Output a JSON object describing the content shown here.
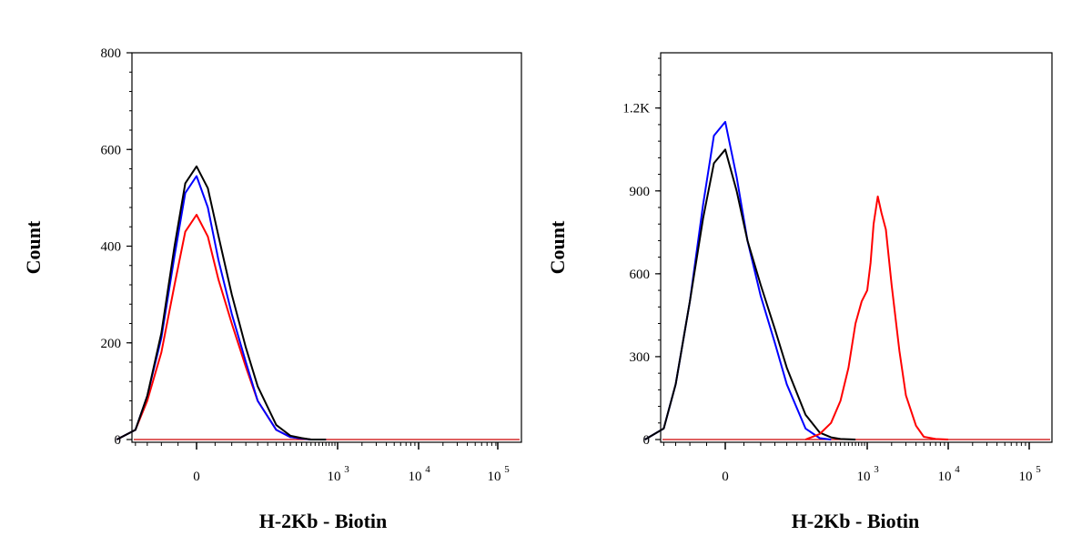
{
  "chart_data": [
    {
      "type": "line",
      "xlabel": "H-2Kb - Biotin",
      "ylabel": "Count",
      "ylim": [
        0,
        800
      ],
      "y_ticks": [
        "0",
        "200",
        "400",
        "600",
        "800"
      ],
      "x_scale": "biexponential",
      "x_ticks": [
        {
          "base": "0",
          "exp": ""
        },
        {
          "base": "10",
          "exp": "3"
        },
        {
          "base": "10",
          "exp": "4"
        },
        {
          "base": "10",
          "exp": "5"
        }
      ],
      "series": [
        {
          "color": "#ff0000",
          "peak_x": 0,
          "peak_y": 465,
          "x": [
            -300,
            -200,
            -150,
            -100,
            -60,
            -30,
            0,
            30,
            60,
            100,
            150,
            200,
            300,
            400,
            500,
            600,
            800
          ],
          "y": [
            0,
            20,
            80,
            180,
            320,
            430,
            465,
            420,
            330,
            240,
            150,
            80,
            20,
            5,
            2,
            0,
            0
          ]
        },
        {
          "color": "#0000ff",
          "peak_x": 0,
          "peak_y": 545,
          "x": [
            -300,
            -200,
            -150,
            -100,
            -60,
            -30,
            0,
            30,
            60,
            100,
            150,
            200,
            300,
            400,
            500,
            600,
            800
          ],
          "y": [
            0,
            20,
            90,
            210,
            380,
            510,
            545,
            480,
            370,
            260,
            160,
            80,
            20,
            5,
            2,
            0,
            0
          ]
        },
        {
          "color": "#000000",
          "peak_x": 0,
          "peak_y": 565,
          "x": [
            -300,
            -200,
            -150,
            -100,
            -60,
            -30,
            0,
            30,
            60,
            100,
            150,
            200,
            300,
            400,
            500,
            600,
            800
          ],
          "y": [
            0,
            20,
            90,
            220,
            400,
            530,
            565,
            520,
            420,
            300,
            190,
            110,
            30,
            8,
            3,
            0,
            0
          ]
        }
      ]
    },
    {
      "type": "line",
      "xlabel": "H-2Kb - Biotin",
      "ylabel": "Count",
      "ylim": [
        0,
        1400
      ],
      "y_ticks": [
        "0",
        "300",
        "600",
        "900",
        "1.2K"
      ],
      "x_scale": "biexponential",
      "x_ticks": [
        {
          "base": "0",
          "exp": ""
        },
        {
          "base": "10",
          "exp": "3"
        },
        {
          "base": "10",
          "exp": "4"
        },
        {
          "base": "10",
          "exp": "5"
        }
      ],
      "series": [
        {
          "color": "#0000ff",
          "peak_x": 0,
          "peak_y": 1150,
          "x": [
            -300,
            -200,
            -150,
            -100,
            -60,
            -30,
            0,
            30,
            60,
            100,
            150,
            200,
            300,
            400,
            500
          ],
          "y": [
            0,
            40,
            200,
            500,
            850,
            1100,
            1150,
            950,
            720,
            520,
            350,
            200,
            40,
            5,
            0
          ]
        },
        {
          "color": "#000000",
          "peak_x": 0,
          "peak_y": 1050,
          "x": [
            -300,
            -200,
            -150,
            -100,
            -60,
            -30,
            0,
            30,
            60,
            100,
            150,
            200,
            300,
            400,
            500,
            600,
            800
          ],
          "y": [
            0,
            40,
            200,
            500,
            800,
            1000,
            1050,
            900,
            720,
            560,
            400,
            260,
            90,
            25,
            8,
            2,
            0
          ]
        },
        {
          "color": "#ff0000",
          "peak_x": 1350,
          "peak_y": 880,
          "x": [
            300,
            400,
            500,
            600,
            700,
            800,
            900,
            1000,
            1100,
            1200,
            1350,
            1500,
            1700,
            2000,
            2500,
            3000,
            4000,
            5000,
            7000,
            10000
          ],
          "y": [
            0,
            20,
            60,
            140,
            260,
            420,
            500,
            540,
            640,
            780,
            880,
            820,
            760,
            560,
            320,
            160,
            50,
            10,
            2,
            0
          ]
        }
      ]
    }
  ]
}
